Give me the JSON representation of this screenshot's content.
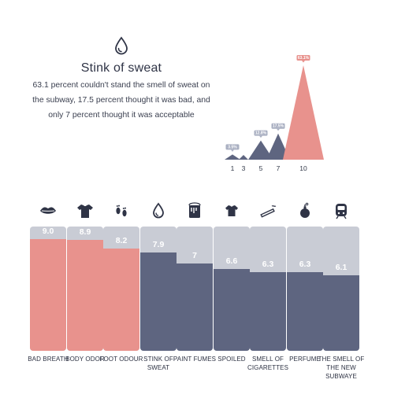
{
  "header": {
    "icon": "sweat-drop-icon",
    "title": "Stink of sweat",
    "description": "63.1 percent couldn't stand the smell of sweat on the subway, 17.5 percent thought it was bad, and only 7 percent thought it was acceptable"
  },
  "colors": {
    "pink": "#e8928d",
    "slate": "#5e6580",
    "track": "#c9ccd5"
  },
  "chart_data": [
    {
      "type": "area",
      "x": [
        1,
        3,
        5,
        7,
        10
      ],
      "values": [
        3.5,
        2.0,
        12.8,
        17.5,
        63.1
      ],
      "point_labels": [
        "3.5%",
        "",
        "12.8%",
        "17.5%",
        "63.1%"
      ],
      "tick_labels": [
        "1",
        "3",
        "5",
        "7",
        "10"
      ],
      "series_colors": [
        "slate",
        "slate",
        "slate",
        "slate",
        "pink"
      ]
    },
    {
      "type": "bar",
      "ylim": [
        0,
        10
      ],
      "bars": [
        {
          "label": "BAD BREATH",
          "value_text": "9.0",
          "value": 9.0,
          "color": "pink",
          "icon": "lips-icon"
        },
        {
          "label": "BODY ODOR",
          "value_text": "8.9",
          "value": 8.9,
          "color": "pink",
          "icon": "shirt-icon"
        },
        {
          "label": "FOOT ODOUR",
          "value_text": "8.2",
          "value": 8.2,
          "color": "pink",
          "icon": "footprints-icon"
        },
        {
          "label": "STINK OF SWEAT",
          "value_text": "7.9",
          "value": 7.9,
          "color": "slate",
          "icon": "sweat-drop-icon"
        },
        {
          "label": "PAINT FUMES",
          "value_text": "7",
          "value": 7.0,
          "color": "slate",
          "icon": "paint-bucket-icon"
        },
        {
          "label": "SPOILED",
          "value_text": "6.6",
          "value": 6.6,
          "color": "slate",
          "icon": "tshirt-icon"
        },
        {
          "label": "SMELL OF CIGARETTES",
          "value_text": "6.3",
          "value": 6.3,
          "color": "slate",
          "icon": "cigarette-icon"
        },
        {
          "label": "PERFUME",
          "value_text": "6.3",
          "value": 6.3,
          "color": "slate",
          "icon": "perfume-bottle-icon"
        },
        {
          "label": "THE SMELL OF THE NEW SUBWAYE",
          "value_text": "6.1",
          "value": 6.1,
          "color": "slate",
          "icon": "subway-train-icon"
        }
      ]
    }
  ]
}
